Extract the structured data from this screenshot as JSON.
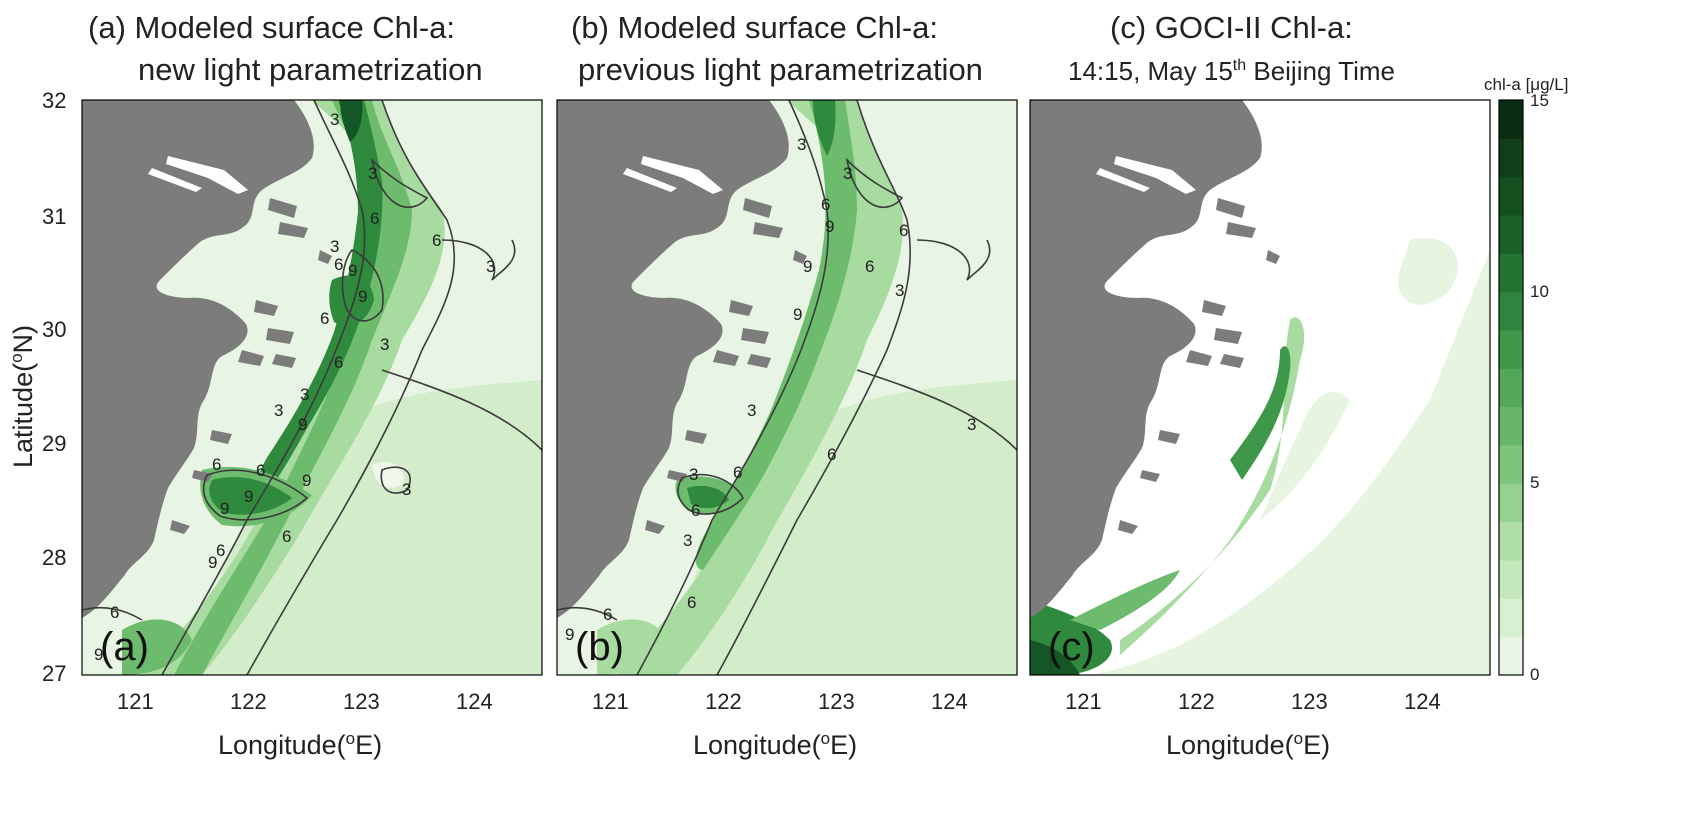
{
  "panels": [
    {
      "title_line1": "(a) Modeled surface Chl-a:",
      "title_line2": "new light parametrization",
      "label": "(a)",
      "contour_labels": [
        "3",
        "3",
        "3",
        "6",
        "6",
        "6",
        "3",
        "9",
        "6",
        "6",
        "3",
        "3",
        "6",
        "9",
        "9",
        "6",
        "6",
        "9",
        "9",
        "9",
        "6",
        "3",
        "6",
        "9",
        "3",
        "9"
      ]
    },
    {
      "title_line1": "(b) Modeled surface Chl-a:",
      "title_line2": "previous light parametrization",
      "label": "(b)",
      "contour_labels": [
        "3",
        "3",
        "6",
        "9",
        "6",
        "9",
        "9",
        "6",
        "3",
        "3",
        "3",
        "6",
        "3",
        "6",
        "3",
        "6",
        "6",
        "6",
        "9"
      ]
    },
    {
      "title_line1": "(c)  GOCI-II Chl-a:",
      "title_line2_pre": "14:15, May 15",
      "title_line2_sup": "th",
      "title_line2_post": " Beijing Time",
      "label": "(c)"
    }
  ],
  "axes": {
    "lat_ticks": [
      "32",
      "31",
      "30",
      "29",
      "28",
      "27"
    ],
    "lon_ticks": [
      "121",
      "122",
      "123",
      "124"
    ],
    "ylabel_pre": "Latitude(",
    "ylabel_sup": "o",
    "ylabel_post": "N)",
    "xlabel_pre": "Longitude(",
    "xlabel_sup": "o",
    "xlabel_post": "E)"
  },
  "colorbar": {
    "title": "chl-a [μg/L]",
    "ticks": [
      "15",
      "10",
      "5",
      "0"
    ],
    "range": [
      0,
      15
    ],
    "colors": [
      "#eaf6e5",
      "#d8efd1",
      "#c4e7bc",
      "#aedda6",
      "#96d190",
      "#7fc47c",
      "#68b769",
      "#52a858",
      "#3f974a",
      "#2f853d",
      "#237331",
      "#1a6127",
      "#144f1f",
      "#0f3e18",
      "#0a2e12"
    ]
  },
  "colors": {
    "land": "#7c7c7c",
    "water_light": "#e9f5e4",
    "chl_low": "#d3ecca",
    "chl_mid": "#a8dba0",
    "chl_high": "#6dbb6c",
    "chl_very_high": "#2f8a3d",
    "chl_max": "#145626"
  }
}
